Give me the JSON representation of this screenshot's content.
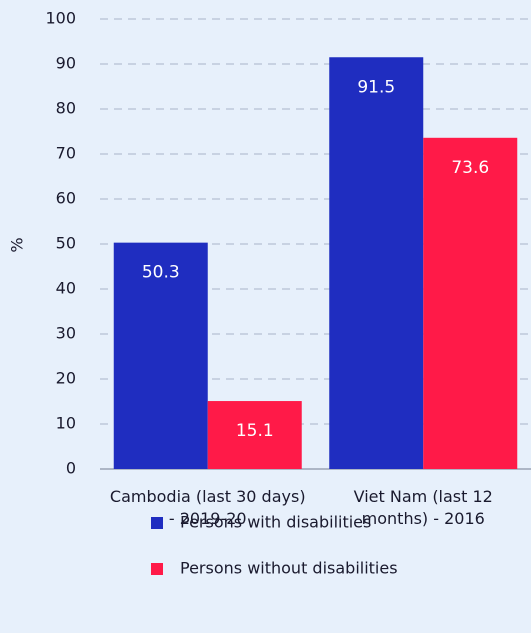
{
  "chart_data": {
    "type": "bar",
    "ylabel": "%",
    "categories": [
      "Cambodia (last 30 days) - 2019-20",
      "Viet Nam (last 12 months) - 2016"
    ],
    "series": [
      {
        "name": "Persons with disabilities",
        "color": "#1f2dc0",
        "values": [
          50.3,
          91.5
        ]
      },
      {
        "name": "Persons without disabilities",
        "color": "#ff1a48",
        "values": [
          15.1,
          73.6
        ]
      }
    ],
    "ylim": [
      0,
      100
    ],
    "yticks": [
      0,
      10,
      20,
      30,
      40,
      50,
      60,
      70,
      80,
      90,
      100
    ],
    "grid": true,
    "legend": "bottom"
  }
}
